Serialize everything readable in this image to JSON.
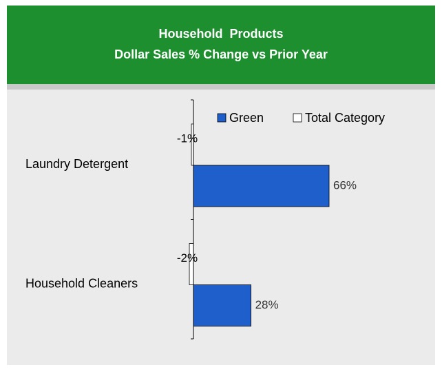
{
  "chart_data": {
    "type": "bar",
    "orientation": "horizontal",
    "title": [
      "Household  Products",
      "Dollar Sales % Change vs Prior Year"
    ],
    "categories": [
      "Laundry Detergent",
      "Household Cleaners"
    ],
    "series": [
      {
        "name": "Green",
        "color": "#1f5fcc",
        "values": [
          66,
          28
        ],
        "value_labels": [
          "66%",
          "28%"
        ]
      },
      {
        "name": "Total Category",
        "color": "#ffffff",
        "values": [
          -1,
          -2
        ],
        "value_labels": [
          "-1%",
          "-2%"
        ]
      }
    ],
    "legend": "top"
  }
}
